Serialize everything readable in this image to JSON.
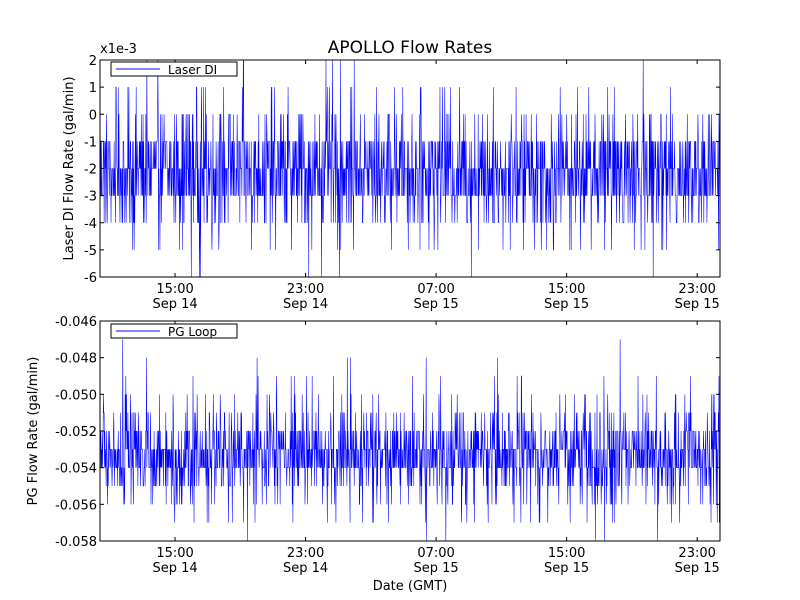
{
  "figure": {
    "title": "APOLLO Flow Rates",
    "xlabel": "Date (GMT)"
  },
  "chart_data": [
    {
      "type": "line",
      "title": "APOLLO Flow Rates",
      "ylabel": "Laser DI Flow Rate (gal/min)",
      "offset_text": "x1e-3",
      "legend": {
        "label": "Laser DI",
        "position": "top-left"
      },
      "color": "#0000ff",
      "grid": false,
      "xlim": [
        "Sep 14 10:24",
        "Sep 16 00:24"
      ],
      "ylim": [
        -0.006,
        0.002
      ],
      "yticks": [
        -0.006,
        -0.005,
        -0.004,
        -0.003,
        -0.002,
        -0.001,
        0,
        0.001,
        0.002
      ],
      "ytick_labels": [
        "-6",
        "-5",
        "-4",
        "-3",
        "-2",
        "-1",
        "0",
        "1",
        "2"
      ],
      "xticks": [
        "Sep 14 15:00",
        "Sep 14 23:00",
        "Sep 15 07:00",
        "Sep 15 15:00",
        "Sep 15 23:00"
      ],
      "xtick_labels": [
        {
          "time": "15:00",
          "date": "Sep 14"
        },
        {
          "time": "23:00",
          "date": "Sep 14"
        },
        {
          "time": "07:00",
          "date": "Sep 15"
        },
        {
          "time": "15:00",
          "date": "Sep 15"
        },
        {
          "time": "23:00",
          "date": "Sep 15"
        }
      ],
      "levels": [
        -0.006,
        -0.005,
        -0.004,
        -0.003,
        -0.002,
        -0.001,
        0,
        0.001,
        0.002
      ],
      "level_weights": [
        0.003,
        0.025,
        0.085,
        0.27,
        0.3,
        0.225,
        0.07,
        0.02,
        0.002
      ],
      "y_typical": -0.002
    },
    {
      "type": "line",
      "ylabel": "PG Flow Rate (gal/min)",
      "legend": {
        "label": "PG Loop",
        "position": "top-left"
      },
      "color": "#0000ff",
      "grid": false,
      "xlim": [
        "Sep 14 10:24",
        "Sep 16 00:24"
      ],
      "ylim": [
        -0.058,
        -0.046
      ],
      "yticks": [
        -0.058,
        -0.056,
        -0.054,
        -0.052,
        -0.05,
        -0.048,
        -0.046
      ],
      "ytick_labels": [
        "-0.058",
        "-0.056",
        "-0.054",
        "-0.052",
        "-0.050",
        "-0.048",
        "-0.046"
      ],
      "xticks": [
        "Sep 14 15:00",
        "Sep 14 23:00",
        "Sep 15 07:00",
        "Sep 15 15:00",
        "Sep 15 23:00"
      ],
      "xtick_labels": [
        {
          "time": "15:00",
          "date": "Sep 14"
        },
        {
          "time": "23:00",
          "date": "Sep 14"
        },
        {
          "time": "07:00",
          "date": "Sep 15"
        },
        {
          "time": "15:00",
          "date": "Sep 15"
        },
        {
          "time": "23:00",
          "date": "Sep 15"
        }
      ],
      "levels": [
        -0.058,
        -0.057,
        -0.056,
        -0.055,
        -0.054,
        -0.053,
        -0.052,
        -0.051,
        -0.05,
        -0.049,
        -0.048,
        -0.047
      ],
      "level_weights": [
        0.004,
        0.02,
        0.05,
        0.1,
        0.27,
        0.28,
        0.17,
        0.06,
        0.03,
        0.01,
        0.004,
        0.002
      ],
      "y_typical": -0.053
    }
  ]
}
